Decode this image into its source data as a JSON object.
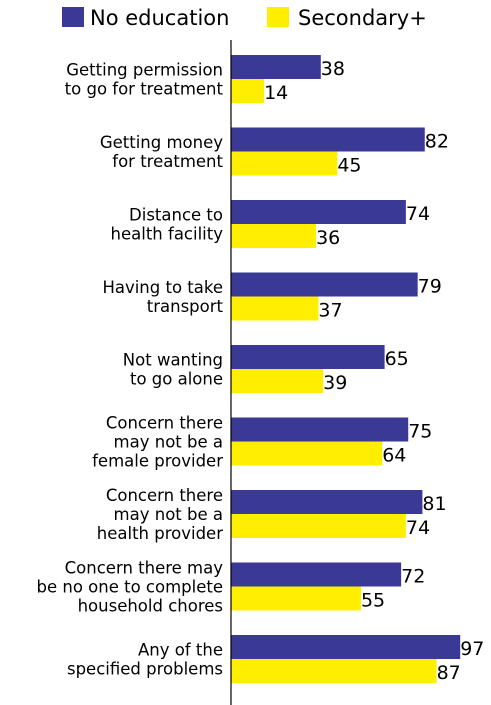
{
  "chart_data": {
    "type": "bar",
    "orientation": "horizontal",
    "title": "",
    "xlabel": "",
    "ylabel": "",
    "xlim": [
      0,
      100
    ],
    "legend_position": "top",
    "grid": false,
    "categories": [
      [
        "Getting permission",
        "to go for treatment"
      ],
      [
        "Getting money",
        "for treatment"
      ],
      [
        "Distance to",
        "health facility"
      ],
      [
        "Having to take",
        "transport"
      ],
      [
        "Not wanting",
        "to go alone"
      ],
      [
        "Concern there",
        "may not be a",
        "female provider"
      ],
      [
        "Concern there",
        "may not be a",
        "health provider"
      ],
      [
        "Concern there may",
        "be no one to complete",
        "household chores"
      ],
      [
        "Any of the",
        "specified problems"
      ]
    ],
    "series": [
      {
        "name": "No education",
        "color": "#3a3a96",
        "values": [
          38,
          82,
          74,
          79,
          65,
          75,
          81,
          72,
          97
        ]
      },
      {
        "name": "Secondary+",
        "color": "#ffee00",
        "values": [
          14,
          45,
          36,
          37,
          39,
          64,
          74,
          55,
          87
        ]
      }
    ]
  }
}
